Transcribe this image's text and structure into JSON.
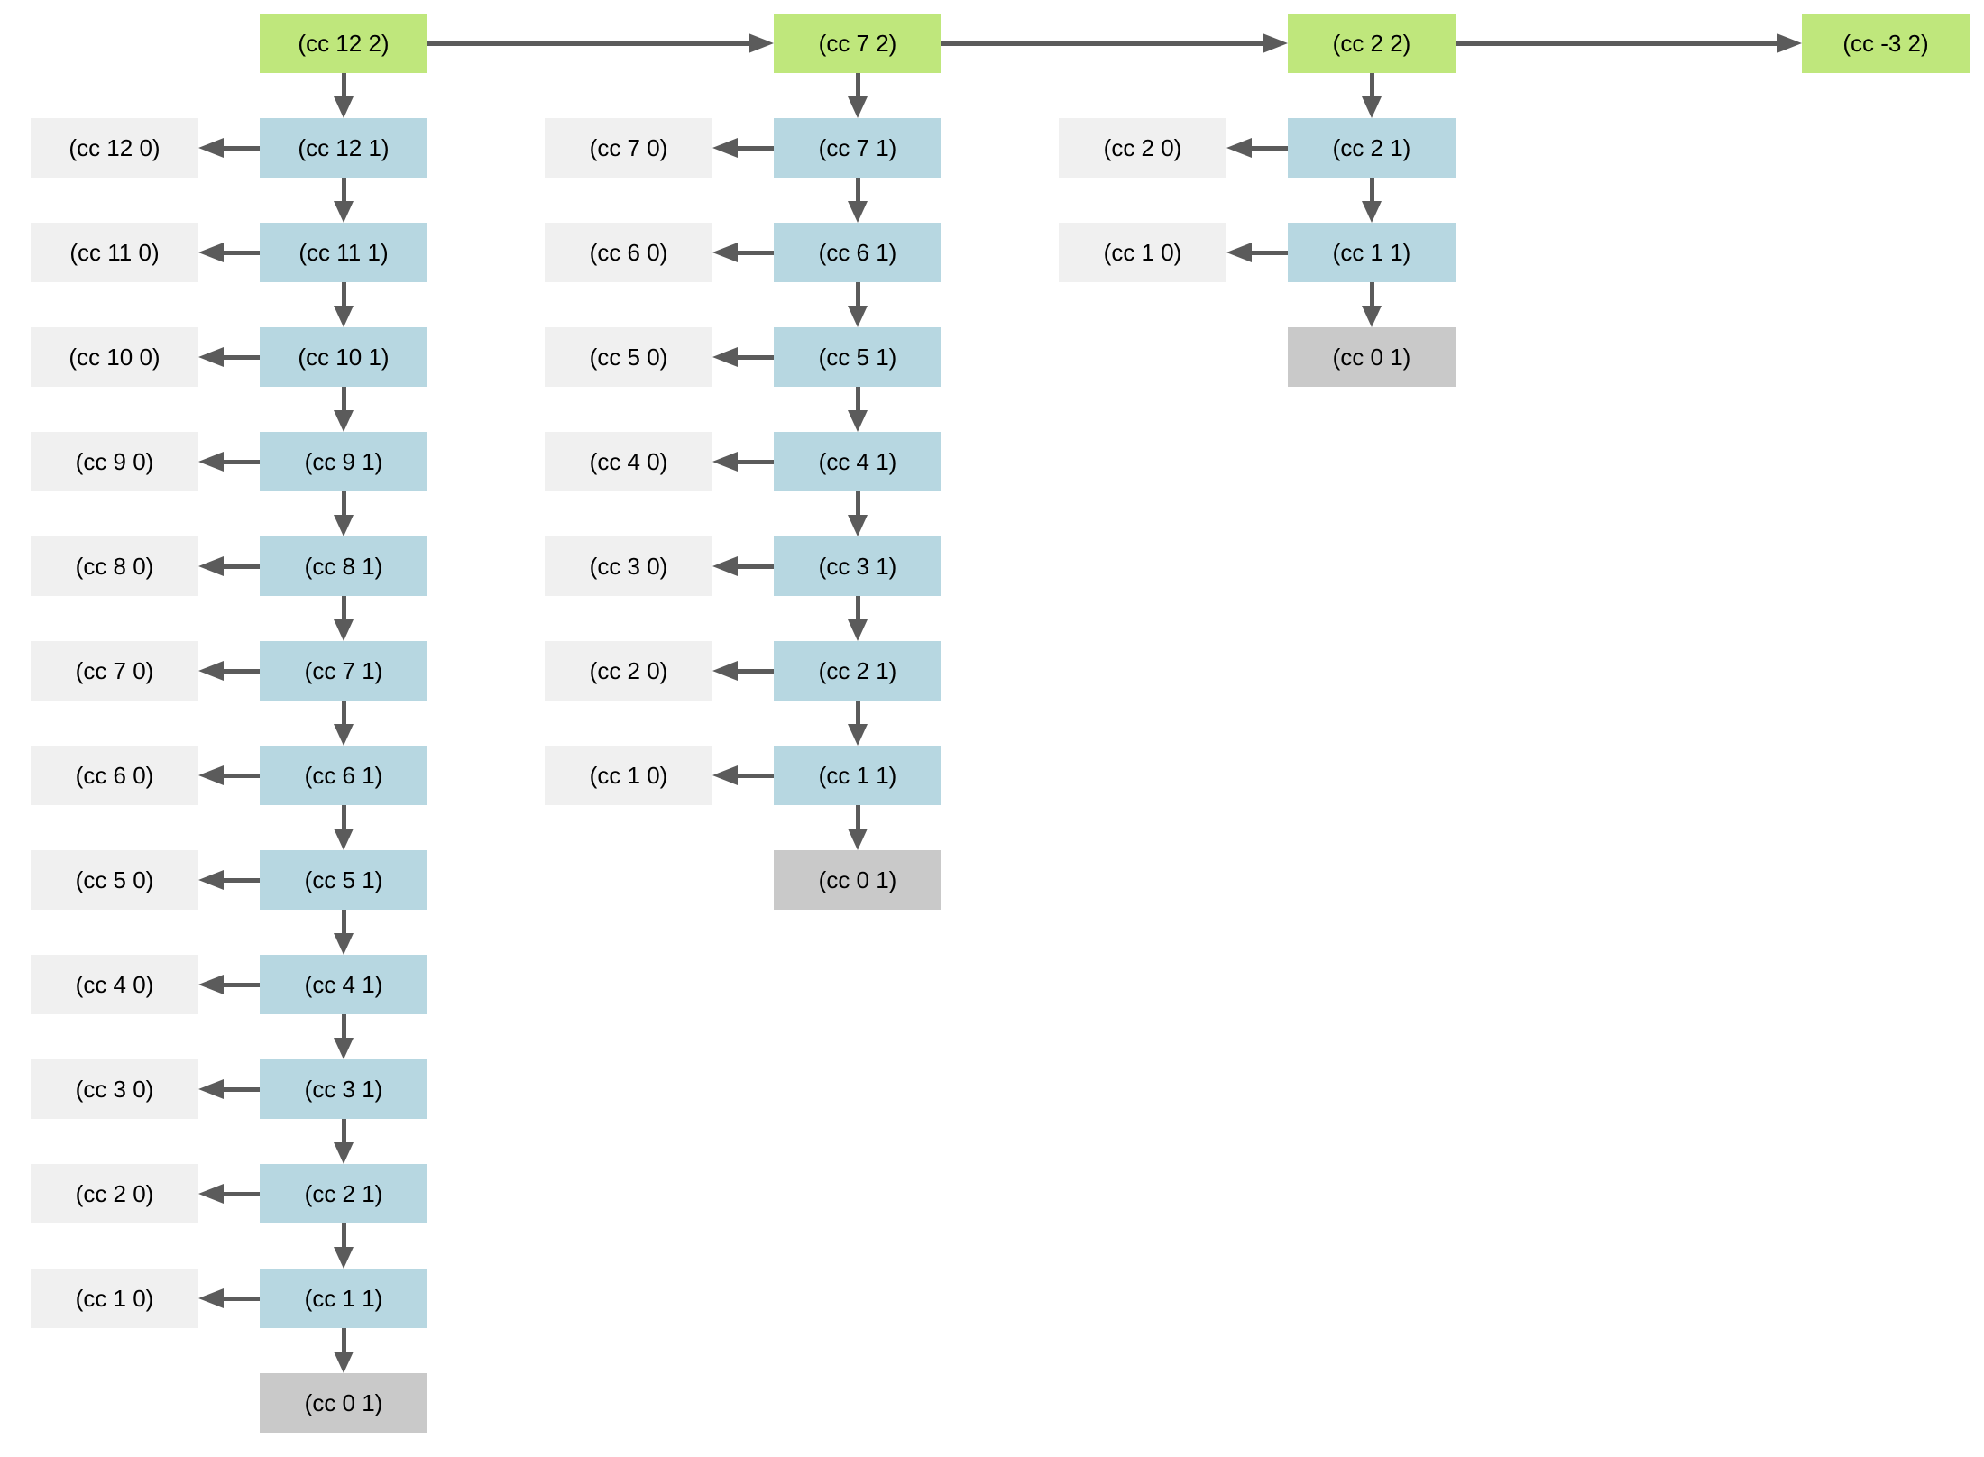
{
  "diagram": {
    "description": "count-change recursion process tree",
    "colors": {
      "root_node": "#bfe77c",
      "chain_node": "#b7d7e1",
      "side_node": "#f0f0f0",
      "terminal_node": "#c9c9c9",
      "arrow": "#5b5b5b",
      "text": "#000000",
      "background": "#ffffff"
    },
    "columns": [
      {
        "root": "(cc 12 2)",
        "steps": [
          {
            "main": "(cc 12 1)",
            "side": "(cc 12 0)"
          },
          {
            "main": "(cc 11 1)",
            "side": "(cc 11 0)"
          },
          {
            "main": "(cc 10 1)",
            "side": "(cc 10 0)"
          },
          {
            "main": "(cc 9 1)",
            "side": "(cc 9 0)"
          },
          {
            "main": "(cc 8 1)",
            "side": "(cc 8 0)"
          },
          {
            "main": "(cc 7 1)",
            "side": "(cc 7 0)"
          },
          {
            "main": "(cc 6 1)",
            "side": "(cc 6 0)"
          },
          {
            "main": "(cc 5 1)",
            "side": "(cc 5 0)"
          },
          {
            "main": "(cc 4 1)",
            "side": "(cc 4 0)"
          },
          {
            "main": "(cc 3 1)",
            "side": "(cc 3 0)"
          },
          {
            "main": "(cc 2 1)",
            "side": "(cc 2 0)"
          },
          {
            "main": "(cc 1 1)",
            "side": "(cc 1 0)"
          }
        ],
        "terminal": "(cc 0 1)"
      },
      {
        "root": "(cc 7 2)",
        "steps": [
          {
            "main": "(cc 7 1)",
            "side": "(cc 7 0)"
          },
          {
            "main": "(cc 6 1)",
            "side": "(cc 6 0)"
          },
          {
            "main": "(cc 5 1)",
            "side": "(cc 5 0)"
          },
          {
            "main": "(cc 4 1)",
            "side": "(cc 4 0)"
          },
          {
            "main": "(cc 3 1)",
            "side": "(cc 3 0)"
          },
          {
            "main": "(cc 2 1)",
            "side": "(cc 2 0)"
          },
          {
            "main": "(cc 1 1)",
            "side": "(cc 1 0)"
          }
        ],
        "terminal": "(cc 0 1)"
      },
      {
        "root": "(cc 2 2)",
        "steps": [
          {
            "main": "(cc 2 1)",
            "side": "(cc 2 0)"
          },
          {
            "main": "(cc 1 1)",
            "side": "(cc 1 0)"
          }
        ],
        "terminal": "(cc 0 1)"
      },
      {
        "root": "(cc -3 2)",
        "steps": [],
        "terminal": null
      }
    ]
  }
}
